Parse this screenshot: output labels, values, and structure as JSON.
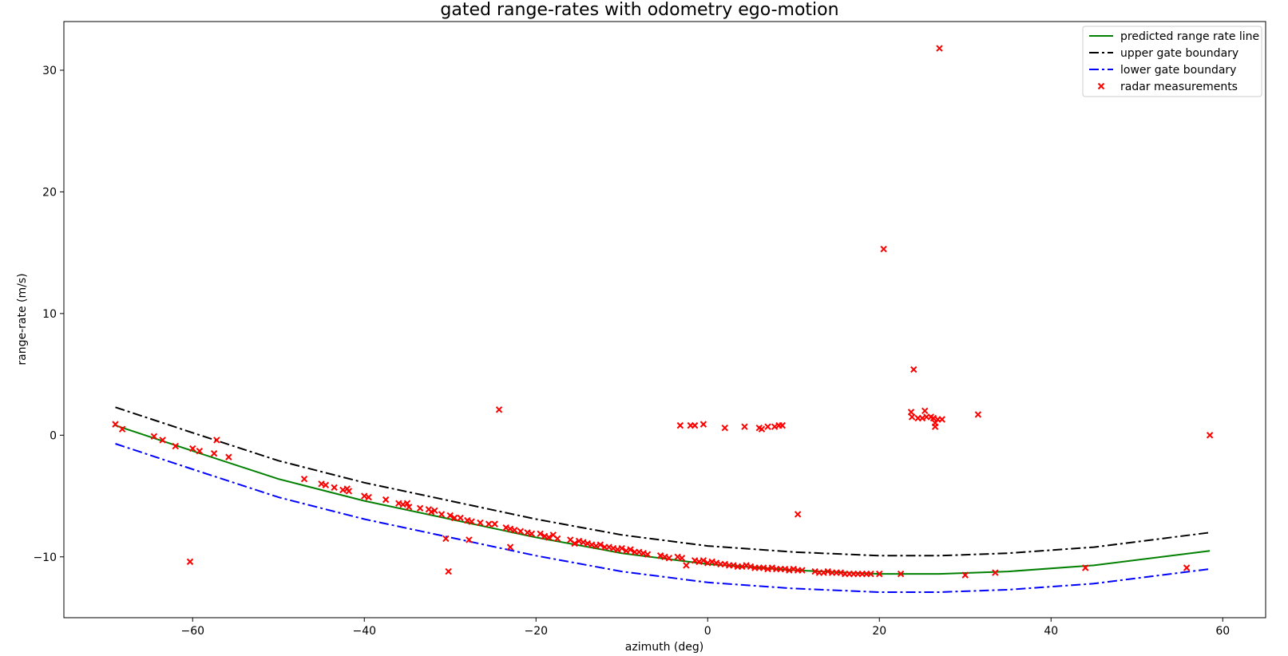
{
  "chart_data": {
    "type": "scatter",
    "title": "gated range-rates with odometry ego-motion",
    "xlabel": "azimuth (deg)",
    "ylabel": "range-rate (m/s)",
    "xlim": [
      -75,
      65
    ],
    "ylim": [
      -15,
      34
    ],
    "xticks": [
      -60,
      -40,
      -20,
      0,
      20,
      40,
      60
    ],
    "yticks": [
      -10,
      0,
      10,
      20,
      30
    ],
    "xtick_labels": [
      "−60",
      "−40",
      "−20",
      "0",
      "20",
      "40",
      "60"
    ],
    "ytick_labels": [
      "−10",
      "0",
      "10",
      "20",
      "30"
    ],
    "legend_position": "top-right",
    "grid": false,
    "series": [
      {
        "name": "predicted range rate line",
        "kind": "line",
        "style": "solid",
        "color": "#008000",
        "x": [
          -69,
          -60,
          -50,
          -40,
          -30,
          -20,
          -10,
          0,
          10,
          20,
          27,
          35,
          45,
          58.5
        ],
        "y": [
          0.8,
          -1.3,
          -3.6,
          -5.4,
          -6.9,
          -8.4,
          -9.7,
          -10.6,
          -11.1,
          -11.4,
          -11.4,
          -11.2,
          -10.7,
          -9.5
        ]
      },
      {
        "name": "upper gate boundary",
        "kind": "line",
        "style": "dashdot",
        "color": "#000000",
        "x": [
          -69,
          -60,
          -50,
          -40,
          -30,
          -20,
          -10,
          0,
          10,
          20,
          27,
          35,
          45,
          58.5
        ],
        "y": [
          2.3,
          0.2,
          -2.1,
          -3.9,
          -5.4,
          -6.9,
          -8.2,
          -9.1,
          -9.6,
          -9.9,
          -9.9,
          -9.7,
          -9.2,
          -8.0
        ]
      },
      {
        "name": "lower gate boundary",
        "kind": "line",
        "style": "dashdot",
        "color": "#0000ff",
        "x": [
          -69,
          -60,
          -50,
          -40,
          -30,
          -20,
          -10,
          0,
          10,
          20,
          27,
          35,
          45,
          58.5
        ],
        "y": [
          -0.7,
          -2.8,
          -5.1,
          -6.9,
          -8.4,
          -9.9,
          -11.2,
          -12.1,
          -12.6,
          -12.9,
          -12.9,
          -12.7,
          -12.2,
          -11.0
        ]
      },
      {
        "name": "radar measurements",
        "kind": "scatter",
        "marker": "x",
        "color": "#ff0000",
        "points": [
          [
            -69,
            0.9
          ],
          [
            -68.2,
            0.5
          ],
          [
            -64.5,
            -0.1
          ],
          [
            -63.5,
            -0.4
          ],
          [
            -62,
            -0.9
          ],
          [
            -60,
            -1.1
          ],
          [
            -59.2,
            -1.3
          ],
          [
            -57.5,
            -1.5
          ],
          [
            -57.2,
            -0.4
          ],
          [
            -55.8,
            -1.8
          ],
          [
            -60.3,
            -10.4
          ],
          [
            -47,
            -3.6
          ],
          [
            -45,
            -4.0
          ],
          [
            -44.5,
            -4.1
          ],
          [
            -43.5,
            -4.3
          ],
          [
            -42.5,
            -4.5
          ],
          [
            -42,
            -4.4
          ],
          [
            -41.8,
            -4.6
          ],
          [
            -40,
            -5.0
          ],
          [
            -39.5,
            -5.1
          ],
          [
            -37.5,
            -5.3
          ],
          [
            -36,
            -5.6
          ],
          [
            -35.5,
            -5.7
          ],
          [
            -35,
            -5.6
          ],
          [
            -34.8,
            -5.9
          ],
          [
            -33.5,
            -6.0
          ],
          [
            -32.5,
            -6.1
          ],
          [
            -32.2,
            -6.3
          ],
          [
            -31.8,
            -6.2
          ],
          [
            -31,
            -6.5
          ],
          [
            -30,
            -6.6
          ],
          [
            -29.5,
            -6.8
          ],
          [
            -28.8,
            -6.8
          ],
          [
            -28,
            -7.0
          ],
          [
            -27.5,
            -7.1
          ],
          [
            -26.5,
            -7.2
          ],
          [
            -25.5,
            -7.3
          ],
          [
            -24.8,
            -7.3
          ],
          [
            -23.5,
            -7.6
          ],
          [
            -23,
            -7.7
          ],
          [
            -22.5,
            -7.8
          ],
          [
            -21.8,
            -7.9
          ],
          [
            -21,
            -8.0
          ],
          [
            -20.5,
            -8.1
          ],
          [
            -19.5,
            -8.1
          ],
          [
            -19,
            -8.3
          ],
          [
            -18.5,
            -8.4
          ],
          [
            -18,
            -8.2
          ],
          [
            -17.5,
            -8.5
          ],
          [
            -16,
            -8.6
          ],
          [
            -15.5,
            -8.9
          ],
          [
            -15,
            -8.7
          ],
          [
            -14.5,
            -8.8
          ],
          [
            -14,
            -8.9
          ],
          [
            -13.5,
            -9.0
          ],
          [
            -13,
            -9.1
          ],
          [
            -12.5,
            -9.0
          ],
          [
            -12,
            -9.2
          ],
          [
            -11.5,
            -9.2
          ],
          [
            -11,
            -9.3
          ],
          [
            -10.5,
            -9.4
          ],
          [
            -10,
            -9.3
          ],
          [
            -9.5,
            -9.5
          ],
          [
            -9,
            -9.4
          ],
          [
            -8.5,
            -9.6
          ],
          [
            -8,
            -9.6
          ],
          [
            -7.5,
            -9.7
          ],
          [
            -7,
            -9.8
          ],
          [
            -5.5,
            -9.9
          ],
          [
            -5,
            -10.0
          ],
          [
            -4.5,
            -10.1
          ],
          [
            -3.5,
            -10.0
          ],
          [
            -3,
            -10.1
          ],
          [
            -2.5,
            -10.7
          ],
          [
            -1.5,
            -10.3
          ],
          [
            -1,
            -10.4
          ],
          [
            -0.5,
            -10.3
          ],
          [
            0,
            -10.5
          ],
          [
            0.5,
            -10.4
          ],
          [
            1,
            -10.5
          ],
          [
            1.5,
            -10.6
          ],
          [
            2,
            -10.6
          ],
          [
            2.5,
            -10.7
          ],
          [
            3,
            -10.7
          ],
          [
            3.5,
            -10.8
          ],
          [
            4,
            -10.8
          ],
          [
            4.5,
            -10.7
          ],
          [
            5,
            -10.8
          ],
          [
            5.5,
            -10.9
          ],
          [
            6,
            -10.9
          ],
          [
            6.5,
            -10.9
          ],
          [
            7,
            -11.0
          ],
          [
            7.5,
            -10.9
          ],
          [
            8,
            -11.0
          ],
          [
            8.5,
            -11.0
          ],
          [
            9,
            -11.0
          ],
          [
            9.5,
            -11.1
          ],
          [
            10,
            -11.0
          ],
          [
            10.5,
            -11.1
          ],
          [
            11,
            -11.1
          ],
          [
            12.5,
            -11.2
          ],
          [
            13,
            -11.3
          ],
          [
            13.5,
            -11.3
          ],
          [
            14,
            -11.2
          ],
          [
            14.5,
            -11.3
          ],
          [
            15,
            -11.3
          ],
          [
            15.5,
            -11.3
          ],
          [
            16,
            -11.4
          ],
          [
            16.5,
            -11.4
          ],
          [
            17,
            -11.4
          ],
          [
            17.5,
            -11.4
          ],
          [
            18,
            -11.4
          ],
          [
            18.5,
            -11.4
          ],
          [
            19,
            -11.4
          ],
          [
            20,
            -11.4
          ],
          [
            22.5,
            -11.4
          ],
          [
            30,
            -11.5
          ],
          [
            33.5,
            -11.3
          ],
          [
            44,
            -10.9
          ],
          [
            55.8,
            -10.9
          ],
          [
            -30.5,
            -8.5
          ],
          [
            -27.8,
            -8.6
          ],
          [
            -23,
            -9.2
          ],
          [
            -30.2,
            -11.2
          ],
          [
            -24.3,
            2.1
          ],
          [
            -3.2,
            0.8
          ],
          [
            -2,
            0.8
          ],
          [
            -1.5,
            0.8
          ],
          [
            -0.5,
            0.9
          ],
          [
            2,
            0.6
          ],
          [
            4.3,
            0.7
          ],
          [
            6,
            0.6
          ],
          [
            6.3,
            0.5
          ],
          [
            7,
            0.7
          ],
          [
            7.8,
            0.7
          ],
          [
            8.3,
            0.8
          ],
          [
            8.7,
            0.8
          ],
          [
            20.5,
            15.3
          ],
          [
            24,
            5.4
          ],
          [
            23.7,
            1.9
          ],
          [
            23.8,
            1.5
          ],
          [
            24.5,
            1.4
          ],
          [
            25,
            1.4
          ],
          [
            25.3,
            2.0
          ],
          [
            25.5,
            1.5
          ],
          [
            26,
            1.5
          ],
          [
            26.3,
            1.4
          ],
          [
            26.5,
            1.0
          ],
          [
            26.5,
            0.7
          ],
          [
            26.8,
            1.3
          ],
          [
            27.3,
            1.3
          ],
          [
            27,
            31.8
          ],
          [
            31.5,
            1.7
          ],
          [
            10.5,
            -6.5
          ],
          [
            58.5,
            0.0
          ]
        ]
      }
    ]
  }
}
